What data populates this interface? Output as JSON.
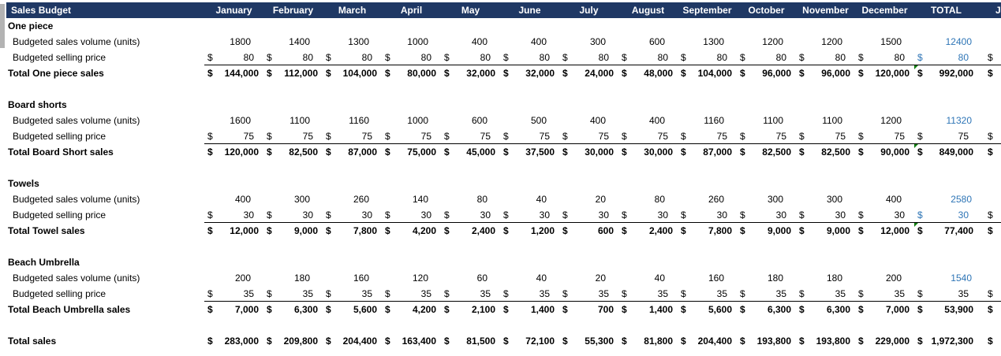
{
  "currency": "$",
  "colors": {
    "header_bg": "#1f3864",
    "header_text": "#ffffff",
    "accent_blue": "#2e75b6",
    "indicator_green": "#107c10",
    "gutter_gray": "#b3b3b3"
  },
  "header": {
    "title": "Sales Budget",
    "months": [
      "January",
      "February",
      "March",
      "April",
      "May",
      "June",
      "July",
      "August",
      "September",
      "October",
      "November",
      "December"
    ],
    "total_label": "TOTAL",
    "overflow_label": "J"
  },
  "row_labels": {
    "volume": "Budgeted sales volume (units)",
    "price": "Budgeted selling price"
  },
  "sections": [
    {
      "name": "One piece",
      "total_label": "Total One piece sales",
      "volumes": [
        "1800",
        "1400",
        "1300",
        "1000",
        "400",
        "400",
        "300",
        "600",
        "1300",
        "1200",
        "1200",
        "1500"
      ],
      "volume_total": "12400",
      "prices": [
        "80",
        "80",
        "80",
        "80",
        "80",
        "80",
        "80",
        "80",
        "80",
        "80",
        "80",
        "80"
      ],
      "price_total": "80",
      "price_total_blue": true,
      "sales": [
        "144,000",
        "112,000",
        "104,000",
        "80,000",
        "32,000",
        "32,000",
        "24,000",
        "48,000",
        "104,000",
        "96,000",
        "96,000",
        "120,000"
      ],
      "sales_total": "992,000",
      "indicator": true
    },
    {
      "name": "Board shorts",
      "total_label": "Total Board Short sales",
      "volumes": [
        "1600",
        "1100",
        "1160",
        "1000",
        "600",
        "500",
        "400",
        "400",
        "1160",
        "1100",
        "1100",
        "1200"
      ],
      "volume_total": "11320",
      "prices": [
        "75",
        "75",
        "75",
        "75",
        "75",
        "75",
        "75",
        "75",
        "75",
        "75",
        "75",
        "75"
      ],
      "price_total": "75",
      "price_total_blue": false,
      "sales": [
        "120,000",
        "82,500",
        "87,000",
        "75,000",
        "45,000",
        "37,500",
        "30,000",
        "30,000",
        "87,000",
        "82,500",
        "82,500",
        "90,000"
      ],
      "sales_total": "849,000",
      "indicator": true
    },
    {
      "name": "Towels",
      "total_label": "Total Towel sales",
      "volumes": [
        "400",
        "300",
        "260",
        "140",
        "80",
        "40",
        "20",
        "80",
        "260",
        "300",
        "300",
        "400"
      ],
      "volume_total": "2580",
      "prices": [
        "30",
        "30",
        "30",
        "30",
        "30",
        "30",
        "30",
        "30",
        "30",
        "30",
        "30",
        "30"
      ],
      "price_total": "30",
      "price_total_blue": true,
      "sales": [
        "12,000",
        "9,000",
        "7,800",
        "4,200",
        "2,400",
        "1,200",
        "600",
        "2,400",
        "7,800",
        "9,000",
        "9,000",
        "12,000"
      ],
      "sales_total": "77,400",
      "indicator": true
    },
    {
      "name": "Beach Umbrella",
      "total_label": "Total Beach Umbrella sales",
      "volumes": [
        "200",
        "180",
        "160",
        "120",
        "60",
        "40",
        "20",
        "40",
        "160",
        "180",
        "180",
        "200"
      ],
      "volume_total": "1540",
      "prices": [
        "35",
        "35",
        "35",
        "35",
        "35",
        "35",
        "35",
        "35",
        "35",
        "35",
        "35",
        "35"
      ],
      "price_total": "35",
      "price_total_blue": false,
      "sales": [
        "7,000",
        "6,300",
        "5,600",
        "4,200",
        "2,100",
        "1,400",
        "700",
        "1,400",
        "5,600",
        "6,300",
        "6,300",
        "7,000"
      ],
      "sales_total": "53,900",
      "indicator": false
    }
  ],
  "grand_total": {
    "label": "Total sales",
    "values": [
      "283,000",
      "209,800",
      "204,400",
      "163,400",
      "81,500",
      "72,100",
      "55,300",
      "81,800",
      "204,400",
      "193,800",
      "193,800",
      "229,000"
    ],
    "total": "1,972,300"
  }
}
